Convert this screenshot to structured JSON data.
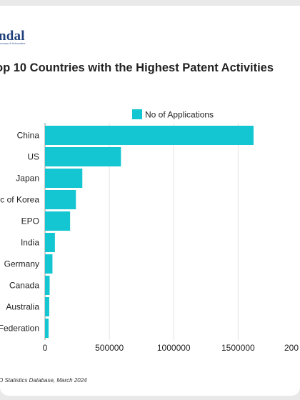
{
  "header": {
    "logo_text": "ndal",
    "logo_subtitle": "orneys & Advocates"
  },
  "footnote": "O Statistics Database, March 2024",
  "colors": {
    "bar": "#14c6d2",
    "grid": "#e3e3e3",
    "axis": "#9a9a9a"
  },
  "chart_data": {
    "type": "bar",
    "orientation": "horizontal",
    "title": "op 10 Countries with the Highest Patent Activities",
    "legend": {
      "position": "top",
      "label": "No of Applications"
    },
    "categories": [
      "China",
      "US",
      "Japan",
      "ic of Korea",
      "EPO",
      "India",
      "Germany",
      "Canada",
      "Australia",
      "Federation"
    ],
    "series": [
      {
        "name": "No of Applications",
        "values": [
          1620000,
          590000,
          290000,
          240000,
          195000,
          77000,
          58000,
          36000,
          33000,
          28000
        ]
      }
    ],
    "xlim": [
      0,
      2000000
    ],
    "xticks": [
      "0",
      "500000",
      "1000000",
      "1500000",
      "200"
    ],
    "xtick_values": [
      0,
      500000,
      1000000,
      1500000,
      2000000
    ],
    "grid": true
  }
}
